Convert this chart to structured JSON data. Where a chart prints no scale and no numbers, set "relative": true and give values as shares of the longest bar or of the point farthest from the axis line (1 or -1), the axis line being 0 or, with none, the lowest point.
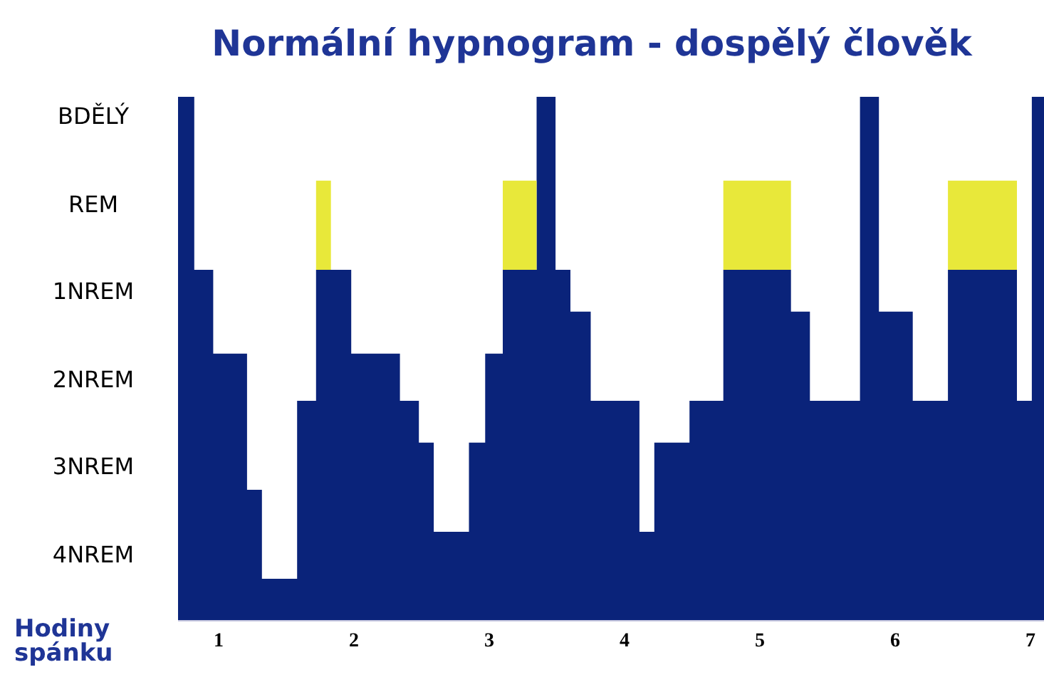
{
  "chart_data": {
    "type": "area",
    "stacked": true,
    "title": "Normální hypnogram - dospělý člověk",
    "xlabel": "Hodiny spánku",
    "xlim": [
      0.7,
      7.1
    ],
    "xticks": [
      1,
      2,
      3,
      4,
      5,
      6,
      7
    ],
    "relative": true,
    "grid": false,
    "legend": false,
    "annotations": [
      "BDĚLÝ",
      "REM",
      "1NREM",
      "2NREM",
      "3NREM",
      "4NREM"
    ],
    "x": [
      0.7,
      0.82,
      0.82,
      0.96,
      0.96,
      1.21,
      1.21,
      1.32,
      1.32,
      1.58,
      1.58,
      1.72,
      1.72,
      1.83,
      1.83,
      1.98,
      1.98,
      2.34,
      2.34,
      2.48,
      2.48,
      2.59,
      2.59,
      2.85,
      2.85,
      2.97,
      2.97,
      3.1,
      3.1,
      3.35,
      3.35,
      3.49,
      3.49,
      3.6,
      3.6,
      3.75,
      3.75,
      4.11,
      4.11,
      4.22,
      4.22,
      4.48,
      4.48,
      4.73,
      4.73,
      5.23,
      5.23,
      5.37,
      5.37,
      5.74,
      5.74,
      5.88,
      5.88,
      6.13,
      6.13,
      6.39,
      6.39,
      6.9,
      6.9,
      7.01,
      7.01,
      7.1
    ],
    "series": [
      {
        "color": "#0a237a",
        "values": [
          1,
          1,
          0.67,
          0.67,
          0.51,
          0.51,
          0.25,
          0.25,
          0.08,
          0.08,
          0.42,
          0.42,
          0.67,
          0.67,
          0.67,
          0.67,
          0.51,
          0.51,
          0.42,
          0.42,
          0.34,
          0.34,
          0.17,
          0.17,
          0.34,
          0.34,
          0.51,
          0.51,
          0.67,
          0.67,
          1,
          1,
          0.67,
          0.67,
          0.59,
          0.59,
          0.42,
          0.42,
          0.17,
          0.17,
          0.34,
          0.34,
          0.42,
          0.42,
          0.67,
          0.67,
          0.59,
          0.59,
          0.42,
          0.42,
          1,
          1,
          0.59,
          0.59,
          0.42,
          0.42,
          0.67,
          0.67,
          0.42,
          0.42,
          1,
          1
        ]
      },
      {
        "color": "#e8e83a",
        "values": [
          0,
          0,
          0,
          0,
          0,
          0,
          0,
          0,
          0,
          0,
          0,
          0,
          0.17,
          0.17,
          0,
          0,
          0,
          0,
          0,
          0,
          0,
          0,
          0,
          0,
          0,
          0,
          0,
          0,
          0.17,
          0.17,
          0,
          0,
          0,
          0,
          0,
          0,
          0,
          0,
          0,
          0,
          0,
          0,
          0,
          0,
          0.17,
          0.17,
          0,
          0,
          0,
          0,
          0,
          0,
          0,
          0,
          0,
          0,
          0.17,
          0.17,
          0,
          0,
          0,
          0
        ]
      }
    ]
  }
}
